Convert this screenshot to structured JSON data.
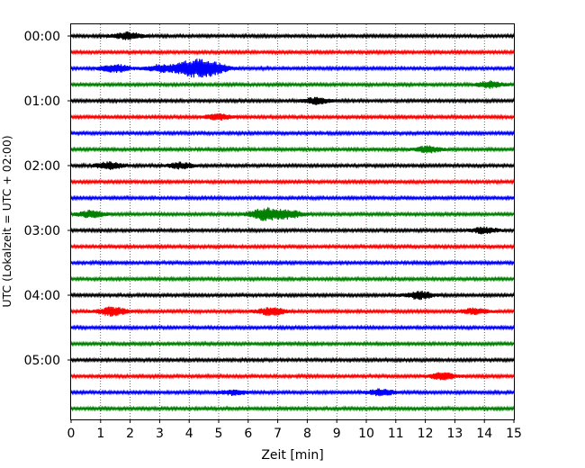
{
  "chart_data": {
    "type": "line",
    "chart_kind": "helicorder",
    "xlabel": "Zeit  [min]",
    "ylabel": "UTC (Lokalzeit = UTC + 02:00)",
    "xlim": [
      0,
      15
    ],
    "xticks": [
      0,
      1,
      2,
      3,
      4,
      5,
      6,
      7,
      8,
      9,
      10,
      11,
      12,
      13,
      14,
      15
    ],
    "x_grid": "dotted",
    "y_time_ticks": [
      "00:00",
      "01:00",
      "02:00",
      "03:00",
      "04:00",
      "05:00"
    ],
    "line_colors_cycle": [
      "#000000",
      "#ff0000",
      "#0000ff",
      "#008000"
    ],
    "trace_count": 24,
    "trace_interval_min": 15,
    "events": [
      {
        "trace": 0,
        "x_min": 1.9,
        "amplitude": 1.8
      },
      {
        "trace": 2,
        "x_min": 1.5,
        "amplitude": 2.0
      },
      {
        "trace": 2,
        "x_min": 3.0,
        "amplitude": 1.6
      },
      {
        "trace": 2,
        "x_min": 4.1,
        "amplitude": 4.2
      },
      {
        "trace": 2,
        "x_min": 4.8,
        "amplitude": 2.6
      },
      {
        "trace": 3,
        "x_min": 14.2,
        "amplitude": 1.6
      },
      {
        "trace": 4,
        "x_min": 8.3,
        "amplitude": 1.6
      },
      {
        "trace": 5,
        "x_min": 5.0,
        "amplitude": 1.4
      },
      {
        "trace": 7,
        "x_min": 12.1,
        "amplitude": 1.6
      },
      {
        "trace": 8,
        "x_min": 1.3,
        "amplitude": 1.8
      },
      {
        "trace": 8,
        "x_min": 3.7,
        "amplitude": 1.5
      },
      {
        "trace": 11,
        "x_min": 0.7,
        "amplitude": 1.7
      },
      {
        "trace": 11,
        "x_min": 6.6,
        "amplitude": 3.2
      },
      {
        "trace": 11,
        "x_min": 7.4,
        "amplitude": 1.8
      },
      {
        "trace": 12,
        "x_min": 14.0,
        "amplitude": 1.5
      },
      {
        "trace": 16,
        "x_min": 11.8,
        "amplitude": 1.9
      },
      {
        "trace": 17,
        "x_min": 1.4,
        "amplitude": 2.2
      },
      {
        "trace": 17,
        "x_min": 6.8,
        "amplitude": 1.9
      },
      {
        "trace": 17,
        "x_min": 13.7,
        "amplitude": 1.6
      },
      {
        "trace": 21,
        "x_min": 12.6,
        "amplitude": 1.7
      },
      {
        "trace": 22,
        "x_min": 10.5,
        "amplitude": 1.6
      },
      {
        "trace": 22,
        "x_min": 5.5,
        "amplitude": 1.3
      }
    ]
  }
}
